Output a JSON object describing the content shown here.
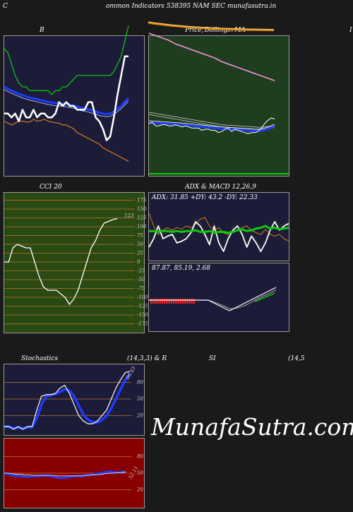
{
  "header": {
    "title_left": "C",
    "title_main": "ommon  Indicators 538395 NAM SEC munafasutra.in"
  },
  "labels": {
    "bollinger": "B",
    "price": "Price,",
    "ema": "MA",
    "bollinger_right": "Bollinger",
    "cci": "CCI 20",
    "adx_macd": "ADX  & MACD 12,26,9",
    "stochastics": "Stochastics",
    "stoch_params": "(14,3,3) & R",
    "rsi": "SI",
    "rsi_params": "(14,5",
    "far_right": "I"
  },
  "watermark": "MunafaSutra.com",
  "colors": {
    "background": "#1a1a1a",
    "navy": "#1c1c38",
    "green_panel": "#1f3d1f",
    "cci_panel": "#2a4a12",
    "rsi_panel": "#880000",
    "white": "#ffffff",
    "blue": "#1e3cff",
    "green": "#0ccc0c",
    "orange": "#d97a1a",
    "grid": "#b87333"
  },
  "chart_data": [
    {
      "id": "bollinger",
      "type": "line",
      "title": "B",
      "series": [
        {
          "key": "close",
          "color": "#ffffff",
          "values": [
            7,
            7,
            6,
            7,
            5,
            8,
            6,
            6,
            8,
            6,
            7,
            7,
            6,
            6,
            7,
            10,
            9,
            10,
            9,
            9,
            8,
            8,
            8,
            10,
            10,
            6,
            5,
            3,
            0,
            1,
            6,
            12,
            17,
            22,
            22
          ]
        },
        {
          "key": "upper",
          "color": "#0ccc0c",
          "values": [
            24,
            23,
            20,
            17,
            15,
            14,
            14,
            13,
            13,
            13,
            13,
            13,
            13,
            12,
            13,
            13,
            14,
            14,
            15,
            16,
            17,
            17,
            17,
            17,
            17,
            17,
            17,
            17,
            17,
            17,
            18,
            20,
            22,
            26,
            30
          ]
        },
        {
          "key": "middle_a",
          "color": "#1e3cff",
          "values": [
            14,
            13.5,
            13,
            12.6,
            12.2,
            11.8,
            11.5,
            11.2,
            11,
            10.8,
            10.5,
            10.3,
            10.1,
            9.9,
            9.8,
            9.7,
            9.6,
            9.5,
            9.3,
            9.1,
            8.8,
            8.5,
            8.3,
            8.1,
            7.8,
            7.5,
            7.2,
            7,
            6.9,
            7,
            7.5,
            8.2,
            9,
            10,
            11
          ]
        },
        {
          "key": "middle_b",
          "color": "#7777ff",
          "values": [
            13.3,
            12.8,
            12.3,
            11.9,
            11.5,
            11.1,
            10.8,
            10.5,
            10.3,
            10.1,
            9.8,
            9.6,
            9.4,
            9.2,
            9.1,
            9,
            8.9,
            8.8,
            8.6,
            8.4,
            8.1,
            7.8,
            7.6,
            7.4,
            7.1,
            6.8,
            6.5,
            6.3,
            6.2,
            6.3,
            6.8,
            7.5,
            8.3,
            9.3,
            10.3
          ]
        },
        {
          "key": "lower",
          "color": "#d97a1a",
          "values": [
            5,
            4.5,
            4,
            4.5,
            5,
            5,
            4.8,
            4.8,
            5.5,
            5,
            5.2,
            5.5,
            5,
            4.8,
            4.6,
            4.5,
            4,
            4,
            3.5,
            3,
            2,
            1.5,
            1,
            0.5,
            0,
            -0.5,
            -1,
            -2,
            -2.5,
            -3,
            -3.5,
            -4,
            -4.5,
            -5,
            -5.5
          ]
        }
      ]
    },
    {
      "id": "price_ema",
      "type": "line",
      "title": "Price, MA",
      "series": [
        {
          "key": "close",
          "color": "#ffffff",
          "values": [
            35,
            36,
            33,
            33,
            34,
            34,
            33,
            33,
            34,
            33,
            32,
            33,
            32,
            31,
            31,
            31,
            29,
            30,
            30,
            29,
            29,
            27,
            28,
            30,
            31,
            28,
            30,
            29,
            28,
            27,
            26,
            27,
            27,
            28,
            31,
            35,
            38,
            40,
            39
          ]
        },
        {
          "key": "ema_top_orange",
          "color": "#e08a0a",
          "values": [
            120,
            119.5,
            119,
            118.6,
            118.2,
            117.8,
            117.4,
            117,
            116.7,
            116.4,
            116.1,
            115.8,
            115.5,
            115.3,
            115,
            114.8,
            114.6,
            114.4,
            114.2,
            114,
            113.8,
            113.7,
            113.6,
            113.5,
            113.4,
            113.3,
            113.2,
            113.1,
            113,
            112.9,
            112.8,
            112.7,
            112.7,
            112.6,
            112.6,
            112.5,
            112.5,
            112.4,
            112.4
          ]
        },
        {
          "key": "ema_pink",
          "color": "#ff66cc",
          "values": [
            100,
            99,
            98,
            97,
            96,
            95,
            94,
            92.5,
            91,
            90,
            89,
            88,
            87,
            86,
            85,
            84,
            83,
            82,
            81,
            80,
            79,
            77.5,
            76,
            75,
            74,
            73,
            72,
            71,
            70,
            69,
            68,
            67,
            66,
            65,
            64,
            63,
            62,
            61,
            60
          ]
        },
        {
          "key": "ema_white1",
          "color": "#cccccc",
          "values": [
            45,
            44.5,
            44,
            43.5,
            43,
            42.5,
            42,
            41.5,
            41,
            40.5,
            40,
            39.5,
            39,
            38.5,
            38,
            37.5,
            37,
            36.5,
            36,
            35.5,
            35,
            34.5,
            34,
            33.8,
            33.6,
            33.4,
            33.2,
            33,
            32.8,
            32.6,
            32.4,
            32.2,
            32,
            31.8,
            31.8,
            32,
            32.5,
            33,
            33.5
          ]
        },
        {
          "key": "ema_blue",
          "color": "#1e3cff",
          "values": [
            36,
            35.8,
            35.6,
            35.4,
            35.2,
            35,
            34.8,
            34.6,
            34.4,
            34.2,
            34,
            33.7,
            33.4,
            33.1,
            32.8,
            32.5,
            32.2,
            31.9,
            31.6,
            31.3,
            31,
            30.8,
            30.6,
            30.4,
            30.2,
            30,
            29.8,
            29.6,
            29.4,
            29.2,
            29,
            28.8,
            28.6,
            28.6,
            28.8,
            29.4,
            30.4,
            31.6,
            32.8
          ]
        }
      ]
    },
    {
      "id": "cci",
      "type": "line",
      "title": "CCI 20",
      "ylim": [
        -175,
        175
      ],
      "yticks": [
        175,
        150,
        125,
        100,
        75,
        50,
        25,
        0,
        -25,
        -50,
        -75,
        -100,
        -125,
        -150,
        -175
      ],
      "last_value_label": "123",
      "values": [
        0,
        0,
        40,
        50,
        45,
        40,
        40,
        0,
        -40,
        -70,
        -80,
        -80,
        -80,
        -90,
        -100,
        -120,
        -105,
        -80,
        -40,
        0,
        40,
        60,
        90,
        110,
        115,
        120,
        123
      ]
    },
    {
      "id": "adx",
      "type": "line",
      "title": "ADX & MACD 12,26,9",
      "readout": "ADX: 31.85  +DY: 43.2  -DY: 22.33",
      "series": [
        {
          "key": "adx",
          "color": "#0ccc0c",
          "values": [
            28,
            28,
            27,
            28,
            28,
            27,
            28,
            27,
            28,
            28,
            29,
            27,
            27,
            28,
            26,
            27,
            27,
            26,
            27,
            29,
            30,
            28,
            29,
            31,
            32,
            34,
            31,
            32,
            30,
            31,
            32
          ]
        },
        {
          "key": "plus_di",
          "color": "#ffffff",
          "values": [
            15,
            25,
            40,
            25,
            28,
            30,
            20,
            22,
            25,
            32,
            45,
            40,
            30,
            18,
            40,
            20,
            10,
            25,
            35,
            40,
            30,
            15,
            28,
            20,
            10,
            20,
            35,
            45,
            35,
            40,
            43
          ]
        },
        {
          "key": "minus_di",
          "color": "#d97a1a",
          "values": [
            55,
            40,
            30,
            35,
            38,
            35,
            38,
            36,
            40,
            38,
            42,
            48,
            50,
            40,
            35,
            38,
            32,
            30,
            34,
            35,
            38,
            40,
            35,
            32,
            30,
            36,
            30,
            28,
            30,
            25,
            22
          ]
        }
      ]
    },
    {
      "id": "macd",
      "type": "line",
      "readout": "87.87,  85.19,  2.68",
      "series": [
        {
          "key": "macd",
          "color": "#ffffff",
          "values": [
            0,
            0,
            0,
            0,
            0,
            0,
            0,
            0,
            0,
            0,
            0,
            0,
            0,
            0,
            0,
            -0.5,
            -1,
            -1.5,
            -2,
            -2.5,
            -2,
            -1.5,
            -1,
            -0.5,
            0,
            0.5,
            1,
            1.5,
            2,
            2.5,
            3
          ]
        },
        {
          "key": "signal",
          "color": "#aaaaaa",
          "values": [
            0,
            0,
            0,
            0,
            0,
            0,
            0,
            0,
            0,
            0,
            0,
            0,
            0,
            0,
            0,
            -0.3,
            -0.7,
            -1.1,
            -1.5,
            -2,
            -2,
            -1.8,
            -1.5,
            -1.1,
            -0.6,
            0,
            0.5,
            1,
            1.4,
            1.9,
            2.4
          ]
        },
        {
          "key": "hist",
          "color": "#ff2020",
          "values": [
            -1,
            -1,
            -1,
            -1,
            -1,
            -1,
            -1,
            -1,
            -1,
            -1,
            -1,
            -1,
            -1,
            -1,
            -1,
            -0.8,
            -0.6,
            -0.4,
            -0.3,
            -0.2,
            0,
            0.2,
            0.3,
            0.4,
            0.5,
            0.6,
            0.7,
            0.8,
            0.9,
            1,
            1
          ]
        }
      ]
    },
    {
      "id": "stochastics",
      "type": "line",
      "title": "Stochastics (14,3,3)",
      "yticks": [
        80,
        50,
        20
      ],
      "last_value_label": "96.43",
      "series": [
        {
          "key": "k",
          "color": "#ffffff",
          "values": [
            0,
            0,
            -5,
            0,
            -5,
            0,
            0,
            30,
            55,
            58,
            58,
            60,
            70,
            75,
            60,
            40,
            20,
            10,
            5,
            5,
            10,
            20,
            30,
            50,
            70,
            85,
            98,
            100
          ]
        },
        {
          "key": "d",
          "color": "#1e3cff",
          "values": [
            0,
            0,
            -3,
            -2,
            -3,
            -2,
            -1,
            15,
            40,
            55,
            57,
            59,
            63,
            68,
            65,
            55,
            38,
            22,
            12,
            8,
            7,
            12,
            20,
            33,
            50,
            68,
            84,
            96
          ]
        }
      ]
    },
    {
      "id": "rsi",
      "type": "line",
      "title": "RSI (14,5",
      "yticks": [
        80,
        50,
        20
      ],
      "last_value_label": "52.11",
      "series": [
        {
          "key": "rsi",
          "color": "#1e3cff",
          "values": [
            50,
            48,
            46,
            45,
            44,
            44,
            43,
            45,
            44,
            45,
            46,
            45,
            44,
            42,
            41,
            42,
            43,
            44,
            45,
            44,
            46,
            47,
            48,
            49,
            50,
            52,
            53,
            52,
            51,
            52,
            53
          ]
        },
        {
          "key": "ma",
          "color": "#ffffff",
          "values": [
            50,
            50,
            49,
            48,
            48,
            47,
            47,
            46,
            46,
            46,
            46,
            46,
            46,
            45,
            45,
            45,
            45,
            45,
            45,
            45,
            46,
            46,
            47,
            47,
            48,
            49,
            50,
            50,
            51,
            51,
            52
          ]
        }
      ]
    }
  ]
}
